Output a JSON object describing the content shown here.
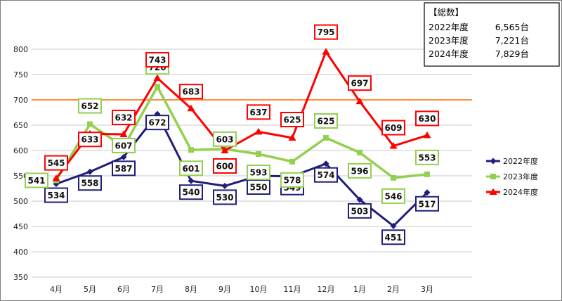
{
  "totals": {
    "heading": "【総数】",
    "rows": [
      {
        "label": "2022年度",
        "value": "6,565台"
      },
      {
        "label": "2023年度",
        "value": "7,221台"
      },
      {
        "label": "2024年度",
        "value": "7,829台"
      }
    ]
  },
  "chart_data": {
    "type": "line",
    "categories": [
      "4月",
      "5月",
      "6月",
      "7月",
      "8月",
      "9月",
      "10月",
      "11月",
      "12月",
      "1月",
      "2月",
      "3月"
    ],
    "ylim": [
      350,
      800
    ],
    "yticks": [
      350,
      400,
      450,
      500,
      550,
      600,
      650,
      700,
      750,
      800
    ],
    "grid": true,
    "reference_line": {
      "value": 700,
      "color": "#ff6600"
    },
    "legend_position": "right",
    "series": [
      {
        "name": "2022年度",
        "color": "#1f1f7a",
        "marker": "diamond",
        "values": [
          534,
          558,
          587,
          672,
          540,
          530,
          550,
          549,
          574,
          503,
          451,
          517
        ]
      },
      {
        "name": "2023年度",
        "color": "#92d050",
        "marker": "square",
        "values": [
          541,
          652,
          607,
          726,
          601,
          603,
          593,
          578,
          625,
          596,
          546,
          553
        ]
      },
      {
        "name": "2024年度",
        "color": "#ff0000",
        "marker": "triangle",
        "values": [
          545,
          633,
          632,
          743,
          683,
          600,
          637,
          625,
          795,
          697,
          609,
          630
        ]
      }
    ]
  }
}
